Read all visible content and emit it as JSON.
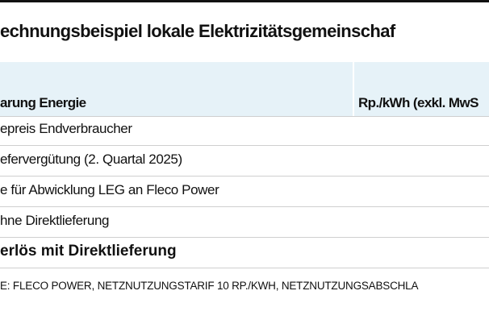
{
  "title": "echnungsbeispiel lokale Elektrizitätsgemeinschaf",
  "table": {
    "header": [
      "arung Energie",
      "Rp./kWh (exkl. MwS"
    ],
    "rows": [
      "epreis Endverbraucher",
      "efervergütung (2. Quartal 2025)",
      "e für Abwicklung LEG an Fleco Power",
      "hne Direktlieferung"
    ],
    "total": "erlös mit Direktlieferung"
  },
  "footnote": "E: FLECO POWER, NETZNUTZUNGSTARIF 10 RP./KWH, NETZNUTZUNGSABSCHLA"
}
